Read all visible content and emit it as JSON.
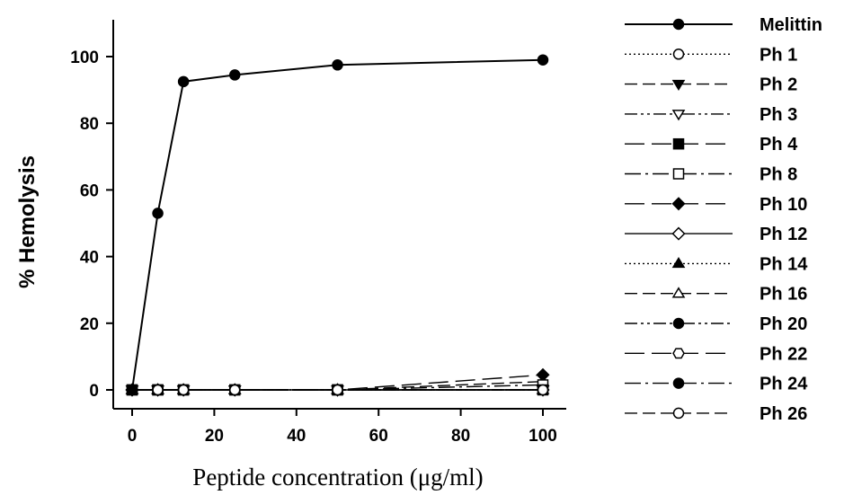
{
  "chart_data": {
    "type": "line",
    "title": "",
    "xlabel": "Peptide concentration (μg/ml)",
    "ylabel": "% Hemolysis",
    "xlim": [
      -4,
      104
    ],
    "ylim": [
      -6,
      110
    ],
    "xticks": [
      0,
      20,
      40,
      60,
      80,
      100
    ],
    "yticks": [
      0,
      20,
      40,
      60,
      80,
      100
    ],
    "grid": false,
    "legend_position": "right",
    "x": [
      0,
      6.25,
      12.5,
      25,
      50,
      100
    ],
    "series": [
      {
        "name": "Melittin",
        "values": [
          0,
          53,
          92.5,
          94.5,
          97.5,
          99
        ],
        "marker": "circle",
        "fill": "filled",
        "line": "solid"
      },
      {
        "name": "Ph 1",
        "values": [
          0,
          0,
          0,
          0,
          0,
          0
        ],
        "marker": "circle",
        "fill": "open",
        "line": "dotted"
      },
      {
        "name": "Ph 2",
        "values": [
          0,
          0,
          0,
          0,
          0,
          0
        ],
        "marker": "triangle-down",
        "fill": "filled",
        "line": "dashed"
      },
      {
        "name": "Ph 3",
        "values": [
          0,
          0,
          0,
          0,
          0,
          0
        ],
        "marker": "triangle-down",
        "fill": "open",
        "line": "dashdotdot"
      },
      {
        "name": "Ph 4",
        "values": [
          0,
          0,
          0,
          0,
          0,
          0
        ],
        "marker": "square",
        "fill": "filled",
        "line": "longdash"
      },
      {
        "name": "Ph 8",
        "values": [
          0,
          0,
          0,
          0,
          0,
          1.5
        ],
        "marker": "square",
        "fill": "open",
        "line": "dashdot"
      },
      {
        "name": "Ph 10",
        "values": [
          0,
          0,
          0,
          0,
          0,
          4.5
        ],
        "marker": "diamond",
        "fill": "filled",
        "line": "longdash"
      },
      {
        "name": "Ph 12",
        "values": [
          0,
          0,
          0,
          0,
          0,
          0
        ],
        "marker": "diamond",
        "fill": "open",
        "line": "solid"
      },
      {
        "name": "Ph 14",
        "values": [
          0,
          0,
          0,
          0,
          0,
          0
        ],
        "marker": "triangle-up",
        "fill": "filled",
        "line": "dotted"
      },
      {
        "name": "Ph 16",
        "values": [
          0,
          0,
          0,
          0,
          0,
          2.5
        ],
        "marker": "triangle-up",
        "fill": "open",
        "line": "dashed"
      },
      {
        "name": "Ph 20",
        "values": [
          0,
          0,
          0,
          0,
          0,
          0
        ],
        "marker": "circle",
        "fill": "filled",
        "line": "dashdotdot"
      },
      {
        "name": "Ph 22",
        "values": [
          0,
          0,
          0,
          0,
          0,
          0
        ],
        "marker": "hexagon",
        "fill": "open",
        "line": "longdash"
      },
      {
        "name": "Ph 24",
        "values": [
          0,
          0,
          0,
          0,
          0,
          0
        ],
        "marker": "circle",
        "fill": "filled",
        "line": "dashdot"
      },
      {
        "name": "Ph 26",
        "values": [
          0,
          0,
          0,
          0,
          0,
          0
        ],
        "marker": "circle",
        "fill": "open",
        "line": "dashed"
      }
    ]
  }
}
